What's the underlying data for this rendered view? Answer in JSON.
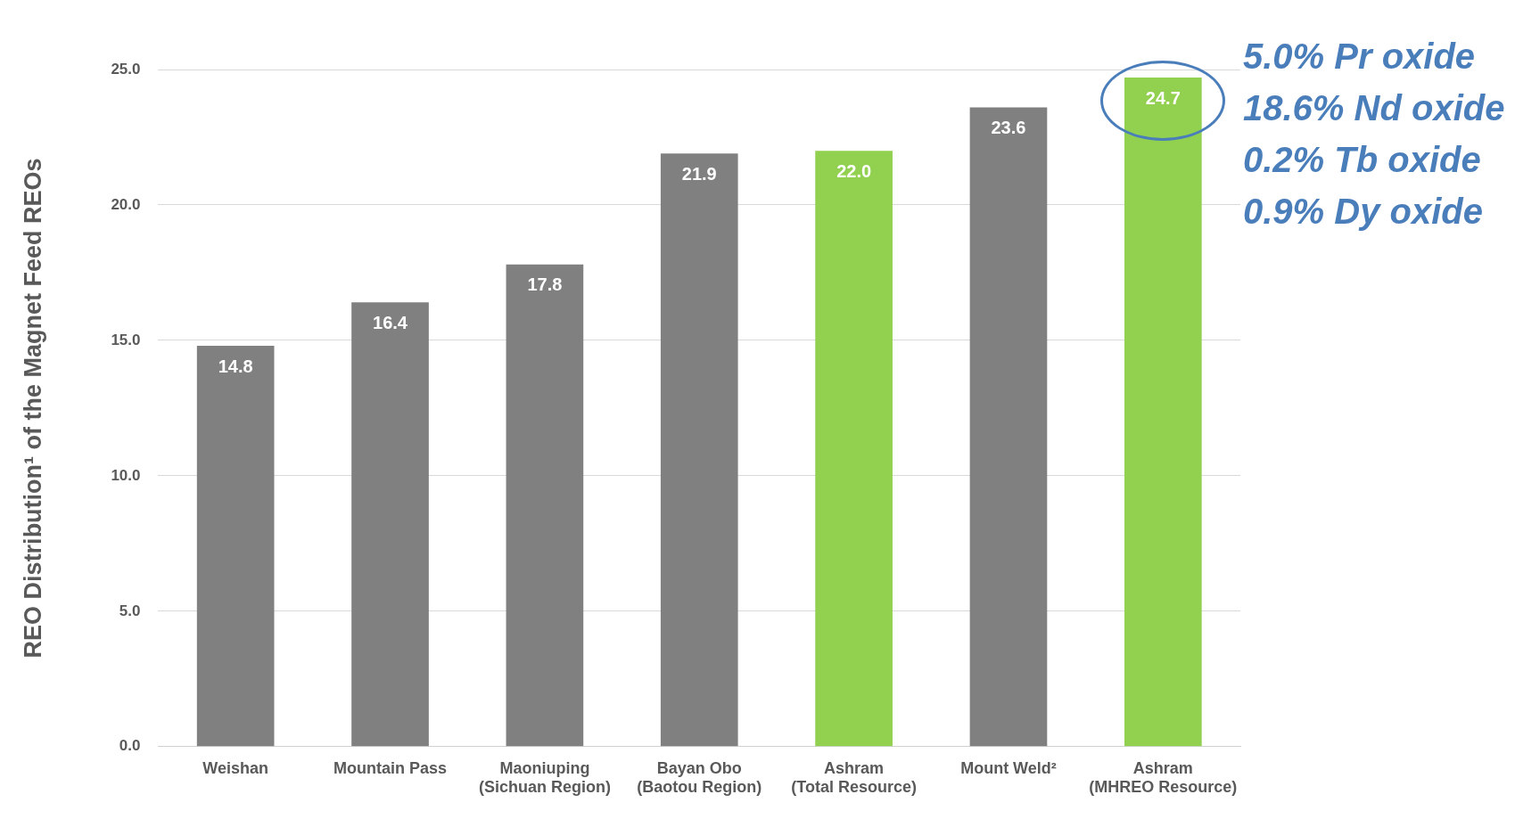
{
  "chart_data": {
    "type": "bar",
    "ylabel": "REO Distribution¹ of the Magnet Feed REOs",
    "categories": [
      "Weishan",
      "Mountain Pass",
      "Maoniuping\n(Sichuan Region)",
      "Bayan Obo\n(Baotou Region)",
      "Ashram\n(Total Resource)",
      "Mount Weld²",
      "Ashram\n(MHREO Resource)"
    ],
    "values": [
      14.8,
      16.4,
      17.8,
      21.9,
      22.0,
      23.6,
      24.7
    ],
    "colors": [
      "#808080",
      "#808080",
      "#808080",
      "#808080",
      "#92d050",
      "#808080",
      "#92d050"
    ],
    "ylim": [
      0,
      25
    ],
    "yticks": [
      {
        "value": 0,
        "label": "0.0"
      },
      {
        "value": 5,
        "label": "5.0"
      },
      {
        "value": 10,
        "label": "10.0"
      },
      {
        "value": 15,
        "label": "15.0"
      },
      {
        "value": 20,
        "label": "20.0"
      },
      {
        "value": 25,
        "label": "25.0"
      }
    ],
    "grid": "y",
    "legend": false,
    "value_labels": [
      "14.8",
      "16.4",
      "17.8",
      "21.9",
      "22.0",
      "23.6",
      "24.7"
    ],
    "annotations": [
      "5.0% Pr oxide",
      "18.6% Nd oxide",
      "0.2% Tb oxide",
      "0.9% Dy oxide"
    ]
  }
}
